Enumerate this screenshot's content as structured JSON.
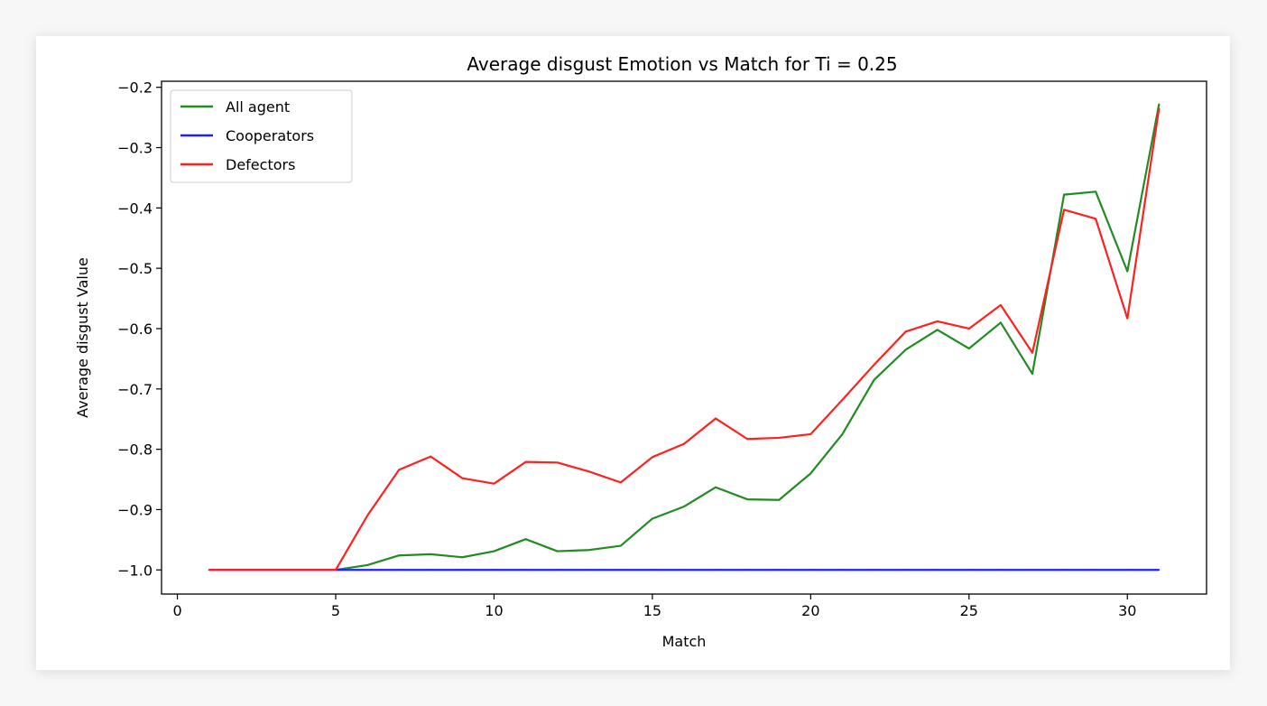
{
  "chart_data": {
    "type": "line",
    "title": "Average disgust Emotion vs Match for Ti = 0.25",
    "xlabel": "Match",
    "ylabel": "Average disgust Value",
    "xlim": [
      -0.5,
      32.5
    ],
    "ylim": [
      -1.04,
      -0.19
    ],
    "xticks": [
      0,
      5,
      10,
      15,
      20,
      25,
      30
    ],
    "yticks": [
      -1.0,
      -0.9,
      -0.8,
      -0.7,
      -0.6,
      -0.5,
      -0.4,
      -0.3,
      -0.2
    ],
    "xtick_labels": [
      "0",
      "5",
      "10",
      "15",
      "20",
      "25",
      "30"
    ],
    "ytick_labels": [
      "−1.0",
      "−0.9",
      "−0.8",
      "−0.7",
      "−0.6",
      "−0.5",
      "−0.4",
      "−0.3",
      "−0.2"
    ],
    "grid": false,
    "legend_position": "top-left",
    "x": [
      1,
      2,
      3,
      4,
      5,
      6,
      7,
      8,
      9,
      10,
      11,
      12,
      13,
      14,
      15,
      16,
      17,
      18,
      19,
      20,
      21,
      22,
      23,
      24,
      25,
      26,
      27,
      28,
      29,
      30,
      31
    ],
    "series": [
      {
        "name": "All agent",
        "color": "#228b22",
        "values": [
          -1.0,
          -1.0,
          -1.0,
          -1.0,
          -1.0,
          -0.992,
          -0.976,
          -0.974,
          -0.979,
          -0.969,
          -0.949,
          -0.969,
          -0.967,
          -0.96,
          -0.915,
          -0.895,
          -0.863,
          -0.883,
          -0.884,
          -0.84,
          -0.775,
          -0.685,
          -0.635,
          -0.602,
          -0.633,
          -0.59,
          -0.675,
          -0.378,
          -0.373,
          -0.505,
          -0.228
        ]
      },
      {
        "name": "Cooperators",
        "color": "#1f1fff",
        "values": [
          -1.0,
          -1.0,
          -1.0,
          -1.0,
          -1.0,
          -1.0,
          -1.0,
          -1.0,
          -1.0,
          -1.0,
          -1.0,
          -1.0,
          -1.0,
          -1.0,
          -1.0,
          -1.0,
          -1.0,
          -1.0,
          -1.0,
          -1.0,
          -1.0,
          -1.0,
          -1.0,
          -1.0,
          -1.0,
          -1.0,
          -1.0,
          -1.0,
          -1.0,
          -1.0,
          -1.0
        ]
      },
      {
        "name": "Defectors",
        "color": "#ff2020",
        "values": [
          -1.0,
          -1.0,
          -1.0,
          -1.0,
          -1.0,
          -0.91,
          -0.834,
          -0.812,
          -0.848,
          -0.857,
          -0.821,
          -0.822,
          -0.837,
          -0.855,
          -0.813,
          -0.791,
          -0.749,
          -0.783,
          -0.781,
          -0.775,
          -0.718,
          -0.66,
          -0.605,
          -0.588,
          -0.6,
          -0.561,
          -0.64,
          -0.403,
          -0.418,
          -0.583,
          -0.235
        ]
      }
    ]
  }
}
